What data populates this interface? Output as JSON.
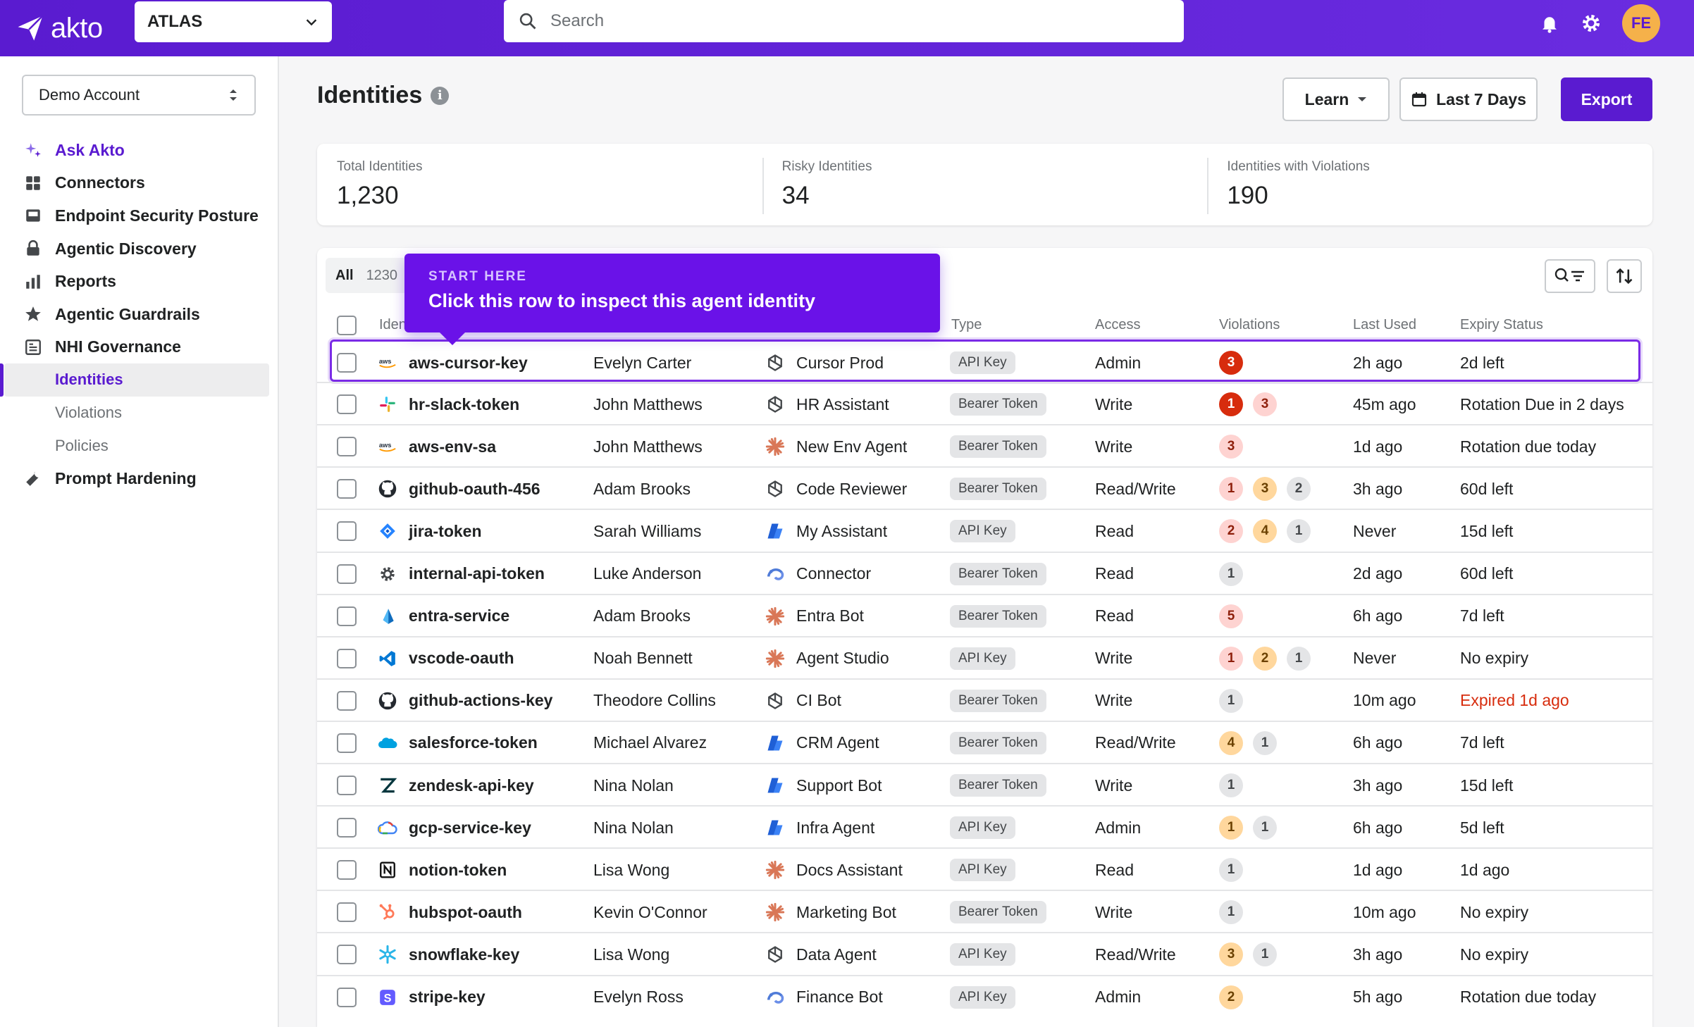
{
  "topbar": {
    "logo_text": "akto",
    "env_select": "ATLAS",
    "search_placeholder": "Search",
    "avatar_initials": "FE",
    "accent": "#5a1bd0"
  },
  "sidebar": {
    "account": "Demo Account",
    "items": [
      {
        "label": "Ask Akto",
        "icon": "sparkle-icon"
      },
      {
        "label": "Connectors",
        "icon": "grid-icon"
      },
      {
        "label": "Endpoint Security Posture",
        "icon": "inbox-icon"
      },
      {
        "label": "Agentic Discovery",
        "icon": "lock-icon"
      },
      {
        "label": "Reports",
        "icon": "bar-chart-icon"
      },
      {
        "label": "Agentic Guardrails",
        "icon": "star-icon"
      },
      {
        "label": "NHI Governance",
        "icon": "clipboard-icon"
      }
    ],
    "sub_items": [
      "Identities",
      "Violations",
      "Policies"
    ],
    "prompt_hardening": "Prompt Hardening"
  },
  "header": {
    "title": "Identities",
    "learn": "Learn",
    "date_range": "Last 7 Days",
    "export": "Export"
  },
  "stats": [
    {
      "label": "Total Identities",
      "value": "1,230"
    },
    {
      "label": "Risky Identities",
      "value": "34"
    },
    {
      "label": "Identities with Violations",
      "value": "190"
    }
  ],
  "tabs": {
    "all": "All",
    "count": "1230"
  },
  "tooltip": {
    "kicker": "START HERE",
    "text": "Click this row to inspect this agent identity"
  },
  "columns": {
    "identity": "Identity",
    "type": "Type",
    "access": "Access",
    "violations": "Violations",
    "last_used": "Last Used",
    "expiry": "Expiry Status"
  },
  "rows": [
    {
      "name": "aws-cursor-key",
      "svc_icon": "aws-icon",
      "owner": "Evelyn Carter",
      "agent_icon": "openai-icon",
      "agent": "Cursor Prod",
      "type": "API Key",
      "access": "Admin",
      "violations": [
        {
          "n": "3",
          "sev": "critical"
        }
      ],
      "last_used": "2h ago",
      "expiry": "2d left",
      "expired": false
    },
    {
      "name": "hr-slack-token",
      "svc_icon": "slack-icon",
      "owner": "John Matthews",
      "agent_icon": "openai-icon",
      "agent": "HR Assistant",
      "type": "Bearer Token",
      "access": "Write",
      "violations": [
        {
          "n": "1",
          "sev": "critical"
        },
        {
          "n": "3",
          "sev": "high"
        }
      ],
      "last_used": "45m ago",
      "expiry": "Rotation Due in 2 days",
      "expired": false
    },
    {
      "name": "aws-env-sa",
      "svc_icon": "aws-icon",
      "owner": "John Matthews",
      "agent_icon": "claude-icon",
      "agent": "New Env Agent",
      "type": "Bearer Token",
      "access": "Write",
      "violations": [
        {
          "n": "3",
          "sev": "high"
        }
      ],
      "last_used": "1d ago",
      "expiry": "Rotation due today",
      "expired": false
    },
    {
      "name": "github-oauth-456",
      "svc_icon": "github-icon",
      "owner": "Adam Brooks",
      "agent_icon": "openai-icon",
      "agent": "Code Reviewer",
      "type": "Bearer Token",
      "access": "Read/Write",
      "violations": [
        {
          "n": "1",
          "sev": "high"
        },
        {
          "n": "3",
          "sev": "medium"
        },
        {
          "n": "2",
          "sev": "low"
        }
      ],
      "last_used": "3h ago",
      "expiry": "60d left",
      "expired": false
    },
    {
      "name": "jira-token",
      "svc_icon": "jira-icon",
      "owner": "Sarah Williams",
      "agent_icon": "copilot-icon",
      "agent": "My Assistant",
      "type": "API Key",
      "access": "Read",
      "violations": [
        {
          "n": "2",
          "sev": "high"
        },
        {
          "n": "4",
          "sev": "medium"
        },
        {
          "n": "1",
          "sev": "low"
        }
      ],
      "last_used": "Never",
      "expiry": "15d left",
      "expired": false
    },
    {
      "name": "internal-api-token",
      "svc_icon": "gear-icon",
      "owner": "Luke Anderson",
      "agent_icon": "gemini-icon",
      "agent": "Connector",
      "type": "Bearer Token",
      "access": "Read",
      "violations": [
        {
          "n": "1",
          "sev": "low"
        }
      ],
      "last_used": "2d ago",
      "expiry": "60d left",
      "expired": false
    },
    {
      "name": "entra-service",
      "svc_icon": "entra-icon",
      "owner": "Adam Brooks",
      "agent_icon": "claude-icon",
      "agent": "Entra Bot",
      "type": "Bearer Token",
      "access": "Read",
      "violations": [
        {
          "n": "5",
          "sev": "high"
        }
      ],
      "last_used": "6h ago",
      "expiry": "7d left",
      "expired": false
    },
    {
      "name": "vscode-oauth",
      "svc_icon": "vscode-icon",
      "owner": "Noah Bennett",
      "agent_icon": "claude-icon",
      "agent": "Agent Studio",
      "type": "API Key",
      "access": "Write",
      "violations": [
        {
          "n": "1",
          "sev": "high"
        },
        {
          "n": "2",
          "sev": "medium"
        },
        {
          "n": "1",
          "sev": "low"
        }
      ],
      "last_used": "Never",
      "expiry": "No expiry",
      "expired": false
    },
    {
      "name": "github-actions-key",
      "svc_icon": "github-icon",
      "owner": "Theodore Collins",
      "agent_icon": "openai-icon",
      "agent": "CI Bot",
      "type": "Bearer Token",
      "access": "Write",
      "violations": [
        {
          "n": "1",
          "sev": "low"
        }
      ],
      "last_used": "10m ago",
      "expiry": "Expired 1d ago",
      "expired": true
    },
    {
      "name": "salesforce-token",
      "svc_icon": "salesforce-icon",
      "owner": "Michael Alvarez",
      "agent_icon": "copilot-icon",
      "agent": "CRM Agent",
      "type": "Bearer Token",
      "access": "Read/Write",
      "violations": [
        {
          "n": "4",
          "sev": "medium"
        },
        {
          "n": "1",
          "sev": "low"
        }
      ],
      "last_used": "6h ago",
      "expiry": "7d left",
      "expired": false
    },
    {
      "name": "zendesk-api-key",
      "svc_icon": "zendesk-icon",
      "owner": "Nina Nolan",
      "agent_icon": "copilot-icon",
      "agent": "Support Bot",
      "type": "Bearer Token",
      "access": "Write",
      "violations": [
        {
          "n": "1",
          "sev": "low"
        }
      ],
      "last_used": "3h ago",
      "expiry": "15d left",
      "expired": false
    },
    {
      "name": "gcp-service-key",
      "svc_icon": "gcp-icon",
      "owner": "Nina Nolan",
      "agent_icon": "copilot-icon",
      "agent": "Infra Agent",
      "type": "API Key",
      "access": "Admin",
      "violations": [
        {
          "n": "1",
          "sev": "medium"
        },
        {
          "n": "1",
          "sev": "low"
        }
      ],
      "last_used": "6h ago",
      "expiry": "5d left",
      "expired": false
    },
    {
      "name": "notion-token",
      "svc_icon": "notion-icon",
      "owner": "Lisa Wong",
      "agent_icon": "claude-icon",
      "agent": "Docs Assistant",
      "type": "API Key",
      "access": "Read",
      "violations": [
        {
          "n": "1",
          "sev": "low"
        }
      ],
      "last_used": "1d ago",
      "expiry": "1d ago",
      "expired": false
    },
    {
      "name": "hubspot-oauth",
      "svc_icon": "hubspot-icon",
      "owner": "Kevin O'Connor",
      "agent_icon": "claude-icon",
      "agent": "Marketing Bot",
      "type": "Bearer Token",
      "access": "Write",
      "violations": [
        {
          "n": "1",
          "sev": "low"
        }
      ],
      "last_used": "10m ago",
      "expiry": "No expiry",
      "expired": false
    },
    {
      "name": "snowflake-key",
      "svc_icon": "snowflake-icon",
      "owner": "Lisa Wong",
      "agent_icon": "openai-icon",
      "agent": "Data Agent",
      "type": "API Key",
      "access": "Read/Write",
      "violations": [
        {
          "n": "3",
          "sev": "medium"
        },
        {
          "n": "1",
          "sev": "low"
        }
      ],
      "last_used": "3h ago",
      "expiry": "No expiry",
      "expired": false
    },
    {
      "name": "stripe-key",
      "svc_icon": "stripe-icon",
      "owner": "Evelyn Ross",
      "agent_icon": "gemini-icon",
      "agent": "Finance Bot",
      "type": "API Key",
      "access": "Admin",
      "violations": [
        {
          "n": "2",
          "sev": "medium"
        }
      ],
      "last_used": "5h ago",
      "expiry": "Rotation due today",
      "expired": false
    }
  ]
}
